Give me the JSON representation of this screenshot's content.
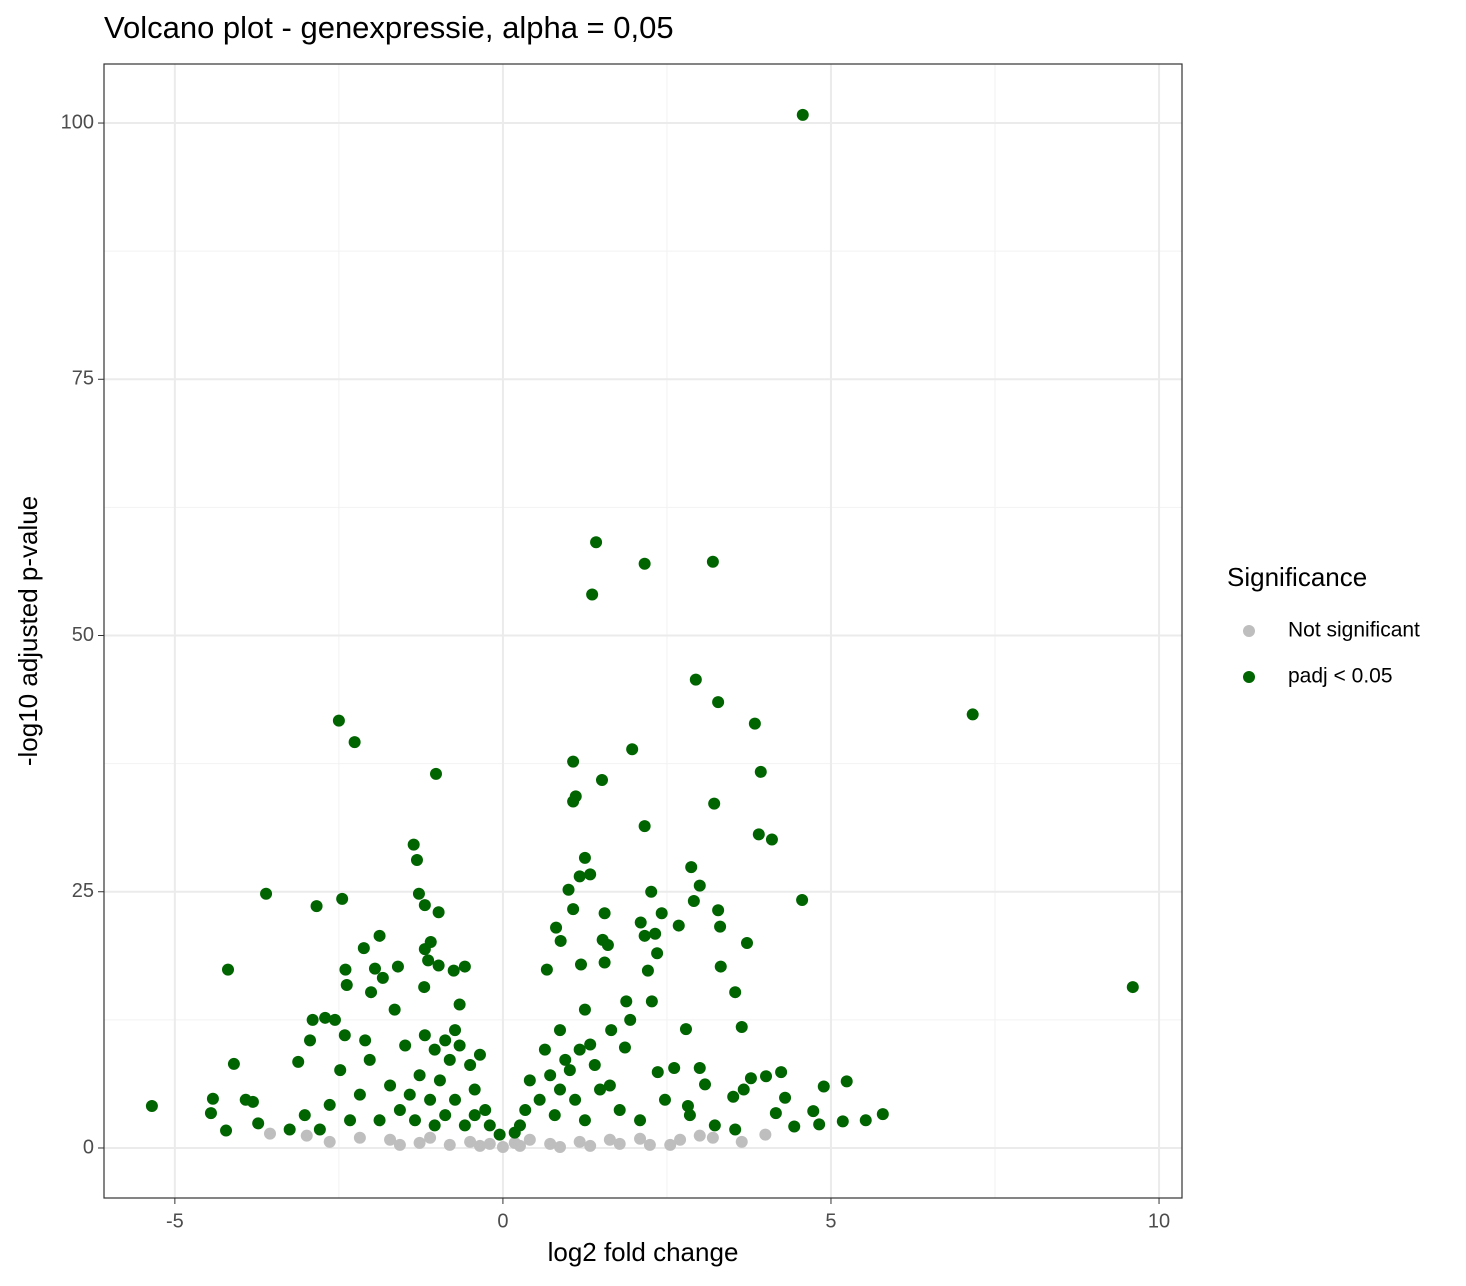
{
  "chart_data": {
    "type": "scatter",
    "title": "Volcano plot - genexpressie, alpha = 0,05",
    "x_label": "log2 fold change",
    "y_label": "-log10 adjusted p-value",
    "legend_title": "Significance",
    "legend_position": "right",
    "grid": true,
    "xlim": [
      -6.08,
      10.35
    ],
    "ylim": [
      -4.88,
      105.76
    ],
    "xticks": [
      -5,
      0,
      5,
      10
    ],
    "yticks": [
      0,
      25,
      50,
      75,
      100
    ],
    "x_minor_grid": [
      -2.5,
      2.5,
      7.5
    ],
    "y_minor_grid": [
      12.5,
      37.5,
      62.5,
      87.5
    ],
    "series": [
      {
        "name": "Not significant",
        "color": "#bebebe",
        "x": [
          -3.55,
          -2.99,
          -2.64,
          -2.18,
          -1.72,
          -1.27,
          -0.81,
          -0.35,
          0,
          0.26,
          0.72,
          1.17,
          1.63,
          2.09,
          2.24,
          2.7,
          3.0,
          3.2,
          3.64,
          4.0,
          -1.57,
          -1.11,
          -0.5,
          -0.2,
          0.18,
          0.41,
          0.87,
          1.33,
          1.78,
          2.55
        ],
        "values": [
          1.4,
          1.2,
          0.6,
          1.0,
          0.8,
          0.5,
          0.3,
          0.2,
          0.1,
          0.2,
          0.4,
          0.6,
          0.8,
          0.9,
          0.3,
          0.8,
          1.2,
          1.0,
          0.6,
          1.3,
          0.3,
          1.0,
          0.6,
          0.4,
          0.5,
          0.8,
          0.1,
          0.2,
          0.4,
          0.3
        ]
      },
      {
        "name": "padj < 0.05",
        "color": "#006400",
        "x": [
          4.57,
          1.42,
          2.16,
          3.2,
          1.36,
          2.94,
          3.28,
          7.16,
          -2.5,
          -2.26,
          3.84,
          1.97,
          1.07,
          -1.02,
          3.93,
          1.51,
          1.11,
          1.07,
          3.22,
          2.16,
          3.9,
          4.1,
          -1.36,
          -1.31,
          1.25,
          2.87,
          1.33,
          1.17,
          3.0,
          2.26,
          1.0,
          -3.61,
          -1.28,
          2.91,
          4.56,
          -2.45,
          -2.84,
          -1.19,
          1.07,
          -0.98,
          1.55,
          3.28,
          2.42,
          2.1,
          2.68,
          3.31,
          0.81,
          -1.88,
          2.16,
          2.32,
          -1.1,
          1.52,
          3.72,
          -2.12,
          0.88,
          -1.19,
          1.6,
          2.35,
          -1.14,
          3.32,
          -4.19,
          -2.4,
          -1.95,
          -1.6,
          -0.98,
          -0.58,
          -0.75,
          0.67,
          1.19,
          1.55,
          2.21,
          9.6,
          -1.83,
          -2.38,
          3.54,
          -2.01,
          -1.2,
          2.27,
          3.64,
          2.79,
          -4.1,
          -2.9,
          -2.71,
          -3.12,
          -5.35,
          -4.42,
          -4.45,
          -4.22,
          -3.92,
          -3.81,
          -3.73,
          4.89,
          5.24,
          5.79,
          5.53,
          5.18,
          4.82,
          4.73,
          4.44,
          4.24,
          4.01,
          3.78,
          4.3,
          4.16,
          3.67,
          3.51,
          3.0,
          2.61,
          3.08,
          2.82,
          2.36,
          1.86,
          1.94,
          1.65,
          1.88,
          1.25,
          1.33,
          0.87,
          0.64,
          0.41,
          0.34,
          0.26,
          0.18,
          0.56,
          0.87,
          1.02,
          1.1,
          0.79,
          1.48,
          1.78,
          2.09,
          2.47,
          2.85,
          3.23,
          3.54,
          1.17,
          0.95,
          1.4,
          0.72,
          1.25,
          1.63,
          -0.2,
          -0.27,
          -0.43,
          -0.5,
          -0.66,
          -0.81,
          -0.96,
          -1.11,
          -1.27,
          -1.42,
          -1.57,
          -1.72,
          -1.88,
          -2.03,
          -2.18,
          -2.33,
          -2.48,
          -2.64,
          -2.79,
          -3.02,
          -3.25,
          -0.88,
          -1.04,
          -0.73,
          -0.66,
          -1.19,
          -1.49,
          -1.65,
          -2.1,
          -2.41,
          -0.43,
          -0.58,
          -0.73,
          -0.88,
          -1.04,
          -1.34,
          -0.05,
          -0.35,
          -2.94,
          -2.56
        ],
        "values": [
          100.8,
          59.1,
          57.0,
          57.2,
          54.0,
          45.7,
          43.5,
          42.3,
          41.7,
          39.6,
          41.4,
          38.9,
          37.7,
          36.5,
          36.7,
          35.9,
          34.3,
          33.8,
          33.6,
          31.4,
          30.6,
          30.1,
          29.6,
          28.1,
          28.3,
          27.4,
          26.7,
          26.5,
          25.6,
          25.0,
          25.2,
          24.8,
          24.8,
          24.1,
          24.2,
          24.3,
          23.6,
          23.7,
          23.3,
          23.0,
          22.9,
          23.2,
          22.9,
          22.0,
          21.7,
          21.6,
          21.5,
          20.7,
          20.7,
          20.9,
          20.1,
          20.3,
          20.0,
          19.5,
          20.2,
          19.4,
          19.8,
          19.0,
          18.3,
          17.7,
          17.4,
          17.4,
          17.5,
          17.7,
          17.8,
          17.7,
          17.3,
          17.4,
          17.9,
          18.1,
          17.3,
          15.7,
          16.6,
          15.9,
          15.2,
          15.2,
          15.7,
          14.3,
          11.8,
          11.6,
          8.2,
          12.5,
          12.7,
          8.4,
          4.1,
          4.8,
          3.4,
          1.7,
          4.7,
          4.5,
          2.4,
          6.0,
          6.5,
          3.3,
          2.7,
          2.6,
          2.3,
          3.6,
          2.1,
          7.4,
          7.0,
          6.8,
          4.9,
          3.4,
          5.7,
          5.0,
          7.8,
          7.8,
          6.2,
          4.1,
          7.4,
          9.8,
          12.5,
          11.5,
          14.3,
          13.5,
          10.1,
          11.5,
          9.6,
          6.6,
          3.7,
          2.2,
          1.5,
          4.7,
          5.7,
          7.6,
          4.7,
          3.2,
          5.7,
          3.7,
          2.7,
          4.7,
          3.2,
          2.2,
          1.8,
          9.6,
          8.6,
          8.1,
          7.1,
          2.7,
          6.1,
          2.2,
          3.7,
          5.7,
          8.1,
          10.0,
          8.6,
          6.6,
          4.7,
          7.1,
          5.2,
          3.7,
          6.1,
          2.7,
          8.6,
          5.2,
          2.7,
          7.6,
          4.2,
          1.8,
          3.2,
          1.8,
          10.5,
          9.6,
          11.5,
          14.0,
          11.0,
          10.0,
          13.5,
          10.5,
          11.0,
          3.2,
          2.2,
          4.7,
          3.2,
          2.2,
          2.7,
          1.3,
          9.1,
          10.5,
          12.5
        ]
      }
    ]
  }
}
